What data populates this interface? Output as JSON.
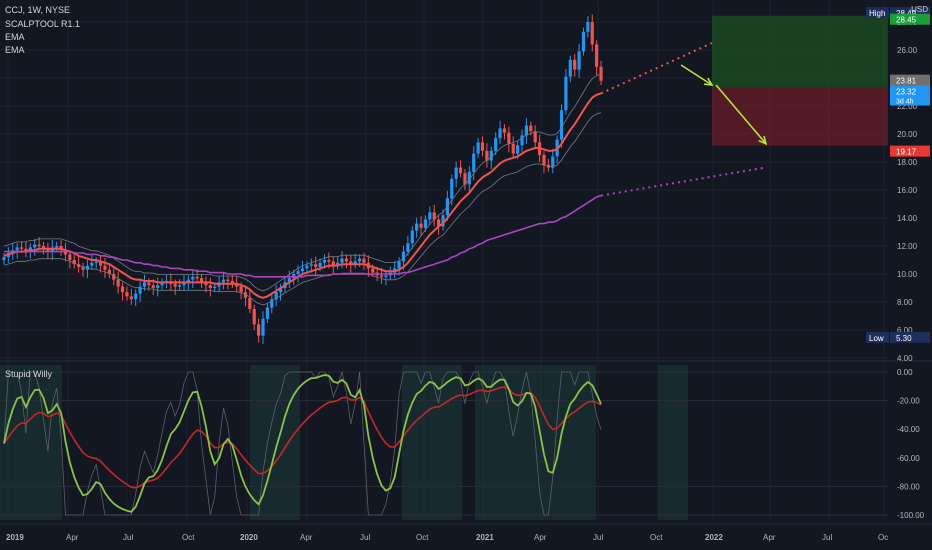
{
  "header": {
    "symbol_line": "CCJ, 1W, NYSE",
    "indicators": [
      "SCALPTOOL R1.1",
      "EMA",
      "EMA"
    ],
    "currency": "USD"
  },
  "lower_pane": {
    "title": "Stupid Willy",
    "y_ticks": [
      "0.00",
      "-20.00",
      "-40.00",
      "-60.00",
      "-80.00",
      "-100.00"
    ]
  },
  "price_axis": {
    "ticks": [
      "28.00",
      "26.00",
      "22.00",
      "20.00",
      "18.00",
      "16.00",
      "14.00",
      "12.00",
      "10.00",
      "8.00",
      "6.00",
      "4.00"
    ],
    "labels": [
      {
        "text": "High",
        "value": "28.49",
        "label_bg": "#1e2f5c",
        "value_bg": "#1e2f5c"
      },
      {
        "text": "",
        "value": "28.45",
        "label_bg": "",
        "value_bg": "#1a9e3a"
      },
      {
        "text": "",
        "value": "23.81",
        "label_bg": "",
        "value_bg": "#707070"
      },
      {
        "text": "",
        "value": "23.32",
        "sub": "3d 4h",
        "label_bg": "",
        "value_bg": "#2196f3"
      },
      {
        "text": "",
        "value": "19.17",
        "label_bg": "",
        "value_bg": "#e53935"
      },
      {
        "text": "Low",
        "value": "5.30",
        "label_bg": "#1e2f5c",
        "value_bg": "#1e2f5c"
      }
    ]
  },
  "time_axis": {
    "labels": [
      "2019",
      "Apr",
      "Jul",
      "Oct",
      "2020",
      "Apr",
      "Jul",
      "Oct",
      "2021",
      "Apr",
      "Jul",
      "Oct",
      "2022",
      "Apr",
      "Jul",
      "Oc"
    ]
  },
  "colors": {
    "background": "#131722",
    "up": "#2196f3",
    "down": "#ef5350",
    "ema_fast": "#ef5350",
    "ema_slow": "#ab47bc",
    "arrow": "#b5e33b",
    "target_zone": "#1b5e20",
    "stop_zone": "#7f1d2a",
    "wr_fast": "#8bc34a",
    "wr_slow": "#c62828"
  },
  "chart_data": {
    "type": "candlestick",
    "interval": "1W",
    "ylim": [
      4,
      28.5
    ],
    "start": "2018-12-31",
    "weekly_closes": [
      11.2,
      11.5,
      11.7,
      11.9,
      11.8,
      11.6,
      11.9,
      12.1,
      12.0,
      11.8,
      11.6,
      11.9,
      12.0,
      11.7,
      11.4,
      11.0,
      10.7,
      10.5,
      10.3,
      10.6,
      10.8,
      10.9,
      10.6,
      10.3,
      10.0,
      9.6,
      9.1,
      8.7,
      8.4,
      8.2,
      8.6,
      9.1,
      9.4,
      9.2,
      9.0,
      9.2,
      9.4,
      9.5,
      9.3,
      9.1,
      9.2,
      9.4,
      9.6,
      9.8,
      9.7,
      9.4,
      9.2,
      9.0,
      9.1,
      9.4,
      9.6,
      9.5,
      9.3,
      9.1,
      8.7,
      8.3,
      7.5,
      6.4,
      5.6,
      6.8,
      7.6,
      8.2,
      8.7,
      9.0,
      9.4,
      9.7,
      10.0,
      10.2,
      10.4,
      10.6,
      10.7,
      10.5,
      10.8,
      11.0,
      10.9,
      10.6,
      10.8,
      11.1,
      10.9,
      10.7,
      10.9,
      11.1,
      10.8,
      10.4,
      10.1,
      9.9,
      9.8,
      9.9,
      10.1,
      10.4,
      10.9,
      11.6,
      12.2,
      13.1,
      13.6,
      13.3,
      13.9,
      14.4,
      13.9,
      13.4,
      14.2,
      15.4,
      16.8,
      17.6,
      17.2,
      16.4,
      17.3,
      18.6,
      19.4,
      18.8,
      18.1,
      18.8,
      19.7,
      20.4,
      20.1,
      19.3,
      18.6,
      19.2,
      19.9,
      20.6,
      20.2,
      19.4,
      18.5,
      17.8,
      17.6,
      18.4,
      19.6,
      21.7,
      24.1,
      25.3,
      24.6,
      25.9,
      27.3,
      28.0,
      26.4,
      24.8,
      23.8
    ],
    "weekly_opens_note": "",
    "ema_fast": [
      11.3,
      11.4,
      11.5,
      11.6,
      11.6,
      11.6,
      11.7,
      11.7,
      11.8,
      11.8,
      11.8,
      11.8,
      11.8,
      11.8,
      11.7,
      11.6,
      11.5,
      11.3,
      11.2,
      11.1,
      11.0,
      11.0,
      10.9,
      10.8,
      10.7,
      10.5,
      10.3,
      10.1,
      9.9,
      9.7,
      9.6,
      9.6,
      9.5,
      9.5,
      9.5,
      9.4,
      9.4,
      9.4,
      9.4,
      9.4,
      9.4,
      9.4,
      9.4,
      9.4,
      9.4,
      9.4,
      9.4,
      9.4,
      9.3,
      9.3,
      9.3,
      9.3,
      9.3,
      9.3,
      9.2,
      9.1,
      8.9,
      8.6,
      8.4,
      8.3,
      8.4,
      8.6,
      8.8,
      9.0,
      9.2,
      9.4,
      9.6,
      9.8,
      10.0,
      10.1,
      10.2,
      10.3,
      10.4,
      10.5,
      10.6,
      10.6,
      10.6,
      10.7,
      10.7,
      10.7,
      10.7,
      10.7,
      10.7,
      10.6,
      10.5,
      10.4,
      10.3,
      10.2,
      10.2,
      10.2,
      10.3,
      10.5,
      10.8,
      11.2,
      11.6,
      12.0,
      12.4,
      12.8,
      13.1,
      13.4,
      13.6,
      14.0,
      14.4,
      14.8,
      15.2,
      15.5,
      15.8,
      16.2,
      16.6,
      16.9,
      17.1,
      17.3,
      17.6,
      17.9,
      18.1,
      18.2,
      18.3,
      18.4,
      18.6,
      18.8,
      18.9,
      19.0,
      19.0,
      18.9,
      18.8,
      18.8,
      18.9,
      19.3,
      19.8,
      20.3,
      20.7,
      21.2,
      21.7,
      22.2,
      22.6,
      22.8,
      22.9
    ],
    "ema_slow": [
      11.6,
      11.6,
      11.6,
      11.6,
      11.6,
      11.6,
      11.6,
      11.6,
      11.6,
      11.6,
      11.6,
      11.6,
      11.6,
      11.6,
      11.6,
      11.6,
      11.5,
      11.5,
      11.5,
      11.4,
      11.4,
      11.4,
      11.3,
      11.3,
      11.2,
      11.2,
      11.1,
      11.0,
      11.0,
      10.9,
      10.8,
      10.8,
      10.7,
      10.7,
      10.6,
      10.6,
      10.5,
      10.5,
      10.4,
      10.4,
      10.4,
      10.3,
      10.3,
      10.3,
      10.2,
      10.2,
      10.2,
      10.1,
      10.1,
      10.1,
      10.1,
      10.0,
      10.0,
      10.0,
      10.0,
      9.9,
      9.9,
      9.8,
      9.8,
      9.8,
      9.8,
      9.8,
      9.8,
      9.8,
      9.8,
      9.8,
      9.8,
      9.8,
      9.8,
      9.9,
      9.9,
      9.9,
      9.9,
      9.9,
      9.9,
      10.0,
      10.0,
      10.0,
      10.0,
      10.0,
      10.0,
      10.0,
      10.0,
      10.0,
      10.0,
      10.0,
      10.0,
      10.0,
      10.0,
      10.0,
      10.0,
      10.1,
      10.1,
      10.2,
      10.3,
      10.4,
      10.5,
      10.6,
      10.7,
      10.8,
      10.9,
      11.0,
      11.2,
      11.3,
      11.5,
      11.6,
      11.8,
      11.9,
      12.1,
      12.2,
      12.4,
      12.5,
      12.6,
      12.7,
      12.8,
      12.9,
      13.0,
      13.1,
      13.2,
      13.3,
      13.4,
      13.5,
      13.6,
      13.6,
      13.7,
      13.7,
      13.8,
      14.0,
      14.1,
      14.3,
      14.5,
      14.7,
      14.9,
      15.1,
      15.3,
      15.5,
      15.6
    ],
    "ema_fast_projection": [
      [
        22.9,
        21.5
      ],
      [
        24.6,
        25.3
      ]
    ],
    "ema_slow_projection": [
      15.6,
      17.6
    ],
    "target_zone": [
      23.3,
      28.45
    ],
    "stop_zone": [
      19.17,
      23.3
    ],
    "arrows": [
      {
        "from": [
          27.5,
          26.2
        ],
        "to": [
          23.3,
          23.5
        ]
      },
      {
        "from": [
          23.3,
          23.5
        ],
        "to": [
          19.17,
          19.3
        ]
      }
    ],
    "lower_pane_range": [
      -100,
      0
    ]
  }
}
